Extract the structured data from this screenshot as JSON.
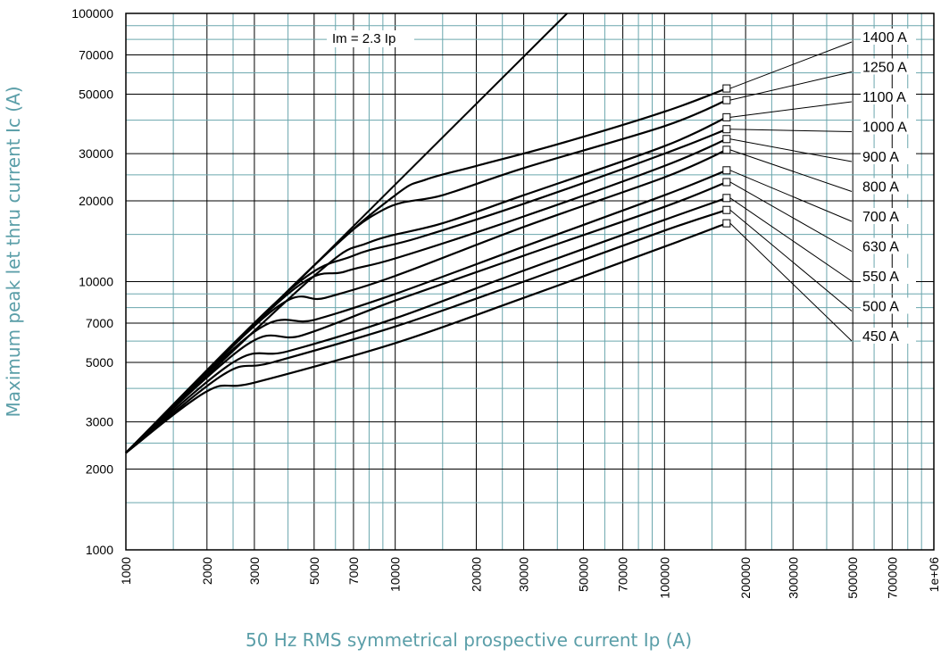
{
  "chart_data": {
    "type": "line",
    "title": "",
    "xlabel": "50 Hz RMS symmetrical prospective current Ip (A)",
    "ylabel": "Maximum peak let thru current Ic (A)",
    "x_scale": "log",
    "y_scale": "log",
    "xlim": [
      1000,
      1000000
    ],
    "ylim": [
      1000,
      100000
    ],
    "grid": true,
    "x_ticks": [
      "1000",
      "2000",
      "3000",
      "5000",
      "7000",
      "10000",
      "20000",
      "30000",
      "50000",
      "70000",
      "100000",
      "200000",
      "300000",
      "500000",
      "700000",
      "1e+06"
    ],
    "y_ticks": [
      "1000",
      "2000",
      "3000",
      "5000",
      "7000",
      "10000",
      "20000",
      "30000",
      "50000",
      "70000",
      "100000"
    ],
    "reference_line": {
      "label": "Im = 2.3 Ip",
      "points": [
        [
          1000,
          2300
        ],
        [
          43478,
          100000
        ]
      ]
    },
    "series": [
      {
        "name": "1400 A",
        "values": [
          [
            1000,
            2300
          ],
          [
            5000,
            11500
          ],
          [
            10000,
            21000
          ],
          [
            13000,
            24000
          ],
          [
            20000,
            27000
          ],
          [
            40000,
            32500
          ],
          [
            100000,
            43000
          ],
          [
            170000,
            52500
          ]
        ]
      },
      {
        "name": "1250 A",
        "values": [
          [
            1000,
            2300
          ],
          [
            5000,
            11500
          ],
          [
            9000,
            18500
          ],
          [
            15000,
            21000
          ],
          [
            30000,
            26500
          ],
          [
            100000,
            38000
          ],
          [
            170000,
            47500
          ]
        ]
      },
      {
        "name": "1100 A",
        "values": [
          [
            1000,
            2300
          ],
          [
            5000,
            10500
          ],
          [
            8000,
            14000
          ],
          [
            15000,
            16500
          ],
          [
            30000,
            21000
          ],
          [
            100000,
            32000
          ],
          [
            170000,
            41000
          ]
        ]
      },
      {
        "name": "1000 A",
        "values": [
          [
            1000,
            2300
          ],
          [
            4000,
            9200
          ],
          [
            7000,
            12500
          ],
          [
            12000,
            14500
          ],
          [
            30000,
            19500
          ],
          [
            100000,
            30000
          ],
          [
            170000,
            37000
          ]
        ]
      },
      {
        "name": "900 A",
        "values": [
          [
            1000,
            2300
          ],
          [
            4000,
            9000
          ],
          [
            6500,
            10900
          ],
          [
            10000,
            12200
          ],
          [
            30000,
            17500
          ],
          [
            100000,
            27000
          ],
          [
            170000,
            34000
          ]
        ]
      },
      {
        "name": "800 A",
        "values": [
          [
            1000,
            2300
          ],
          [
            3500,
            7800
          ],
          [
            5500,
            8700
          ],
          [
            10000,
            10500
          ],
          [
            30000,
            16000
          ],
          [
            100000,
            24500
          ],
          [
            170000,
            31000
          ]
        ]
      },
      {
        "name": "700 A",
        "values": [
          [
            1000,
            2300
          ],
          [
            3000,
            6500
          ],
          [
            5000,
            7200
          ],
          [
            10000,
            9000
          ],
          [
            30000,
            13500
          ],
          [
            100000,
            21000
          ],
          [
            170000,
            26000
          ]
        ]
      },
      {
        "name": "630 A",
        "values": [
          [
            1000,
            2300
          ],
          [
            2800,
            5800
          ],
          [
            4500,
            6300
          ],
          [
            10000,
            8500
          ],
          [
            30000,
            12500
          ],
          [
            100000,
            19000
          ],
          [
            170000,
            23500
          ]
        ]
      },
      {
        "name": "550 A",
        "values": [
          [
            1000,
            2300
          ],
          [
            2500,
            5000
          ],
          [
            4000,
            5500
          ],
          [
            10000,
            7300
          ],
          [
            30000,
            11000
          ],
          [
            100000,
            17000
          ],
          [
            170000,
            20500
          ]
        ]
      },
      {
        "name": "500 A",
        "values": [
          [
            1000,
            2300
          ],
          [
            2300,
            4500
          ],
          [
            3500,
            5000
          ],
          [
            10000,
            6800
          ],
          [
            30000,
            10000
          ],
          [
            100000,
            15500
          ],
          [
            170000,
            18500
          ]
        ]
      },
      {
        "name": "450 A",
        "values": [
          [
            1000,
            2300
          ],
          [
            2000,
            3900
          ],
          [
            3000,
            4200
          ],
          [
            10000,
            5900
          ],
          [
            30000,
            8700
          ],
          [
            100000,
            13500
          ],
          [
            170000,
            16500
          ]
        ]
      }
    ]
  }
}
